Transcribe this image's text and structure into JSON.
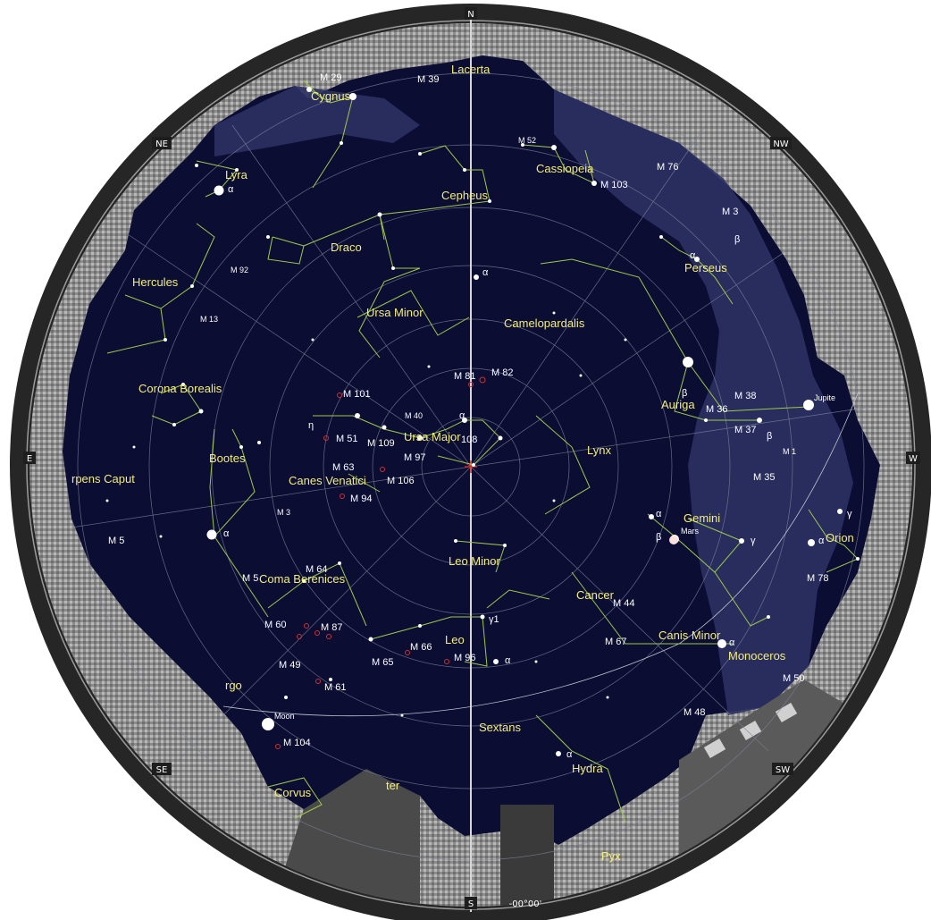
{
  "directions": {
    "n": "N",
    "ne": "NE",
    "e": "E",
    "se": "SE",
    "s": "S",
    "sw": "SW",
    "w": "W",
    "nw": "NW"
  },
  "readout": "-00°00'",
  "constellations": [
    {
      "id": "cygnus",
      "label": "Cygnus"
    },
    {
      "id": "lacerta",
      "label": "Lacerta"
    },
    {
      "id": "cassiopeia",
      "label": "Cassiopeia"
    },
    {
      "id": "cepheus",
      "label": "Cepheus"
    },
    {
      "id": "lyra",
      "label": "Lyra"
    },
    {
      "id": "draco",
      "label": "Draco"
    },
    {
      "id": "hercules",
      "label": "Hercules"
    },
    {
      "id": "ursa-minor",
      "label": "Ursa Minor"
    },
    {
      "id": "camelopardalis",
      "label": "Camelopardalis"
    },
    {
      "id": "perseus",
      "label": "Perseus"
    },
    {
      "id": "corona-borealis",
      "label": "Corona Borealis"
    },
    {
      "id": "auriga",
      "label": "Auriga"
    },
    {
      "id": "bootes",
      "label": "Bootes"
    },
    {
      "id": "ursa-major",
      "label": "Ursa Major"
    },
    {
      "id": "lynx",
      "label": "Lynx"
    },
    {
      "id": "serpens-caput",
      "label": "rpens Caput"
    },
    {
      "id": "canes-venatici",
      "label": "Canes Venatici"
    },
    {
      "id": "gemini",
      "label": "Gemini"
    },
    {
      "id": "orion",
      "label": "Orion"
    },
    {
      "id": "leo-minor",
      "label": "Leo Minor"
    },
    {
      "id": "coma-berenices",
      "label": "Coma Berenices"
    },
    {
      "id": "cancer",
      "label": "Cancer"
    },
    {
      "id": "leo",
      "label": "Leo"
    },
    {
      "id": "canis-minor",
      "label": "Canis Minor"
    },
    {
      "id": "monoceros",
      "label": "Monoceros"
    },
    {
      "id": "virgo",
      "label": "rgo"
    },
    {
      "id": "sextans",
      "label": "Sextans"
    },
    {
      "id": "hydra",
      "label": "Hydra"
    },
    {
      "id": "corvus",
      "label": "Corvus"
    },
    {
      "id": "crater",
      "label": "ter"
    },
    {
      "id": "pyxis",
      "label": "Pyx"
    }
  ],
  "objects": [
    {
      "id": "m29",
      "label": "M 29"
    },
    {
      "id": "m39",
      "label": "M 39"
    },
    {
      "id": "m52",
      "label": "M 52"
    },
    {
      "id": "m76",
      "label": "M 76"
    },
    {
      "id": "m103",
      "label": "M 103"
    },
    {
      "id": "m34",
      "label": "M 3"
    },
    {
      "id": "m92",
      "label": "M 92"
    },
    {
      "id": "m13",
      "label": "M 13"
    },
    {
      "id": "m81",
      "label": "M 81"
    },
    {
      "id": "m82",
      "label": "M 82"
    },
    {
      "id": "m101",
      "label": "M 101"
    },
    {
      "id": "m40",
      "label": "M 40"
    },
    {
      "id": "m38",
      "label": "M 38"
    },
    {
      "id": "m36",
      "label": "M 36"
    },
    {
      "id": "m37",
      "label": "M 37"
    },
    {
      "id": "m51",
      "label": "M 51"
    },
    {
      "id": "m109",
      "label": "M 109"
    },
    {
      "id": "m108",
      "label": "108"
    },
    {
      "id": "m97",
      "label": "M 97"
    },
    {
      "id": "m1",
      "label": "M 1"
    },
    {
      "id": "m63",
      "label": "M 63"
    },
    {
      "id": "m106",
      "label": "M 106"
    },
    {
      "id": "m35",
      "label": "M 35"
    },
    {
      "id": "m94",
      "label": "M 94"
    },
    {
      "id": "m3",
      "label": "M 3"
    },
    {
      "id": "m5",
      "label": "M 5"
    },
    {
      "id": "m64",
      "label": "M 64"
    },
    {
      "id": "m53",
      "label": "M 5"
    },
    {
      "id": "m78",
      "label": "M 78"
    },
    {
      "id": "m44",
      "label": "M 44"
    },
    {
      "id": "m60",
      "label": "M 60"
    },
    {
      "id": "m87",
      "label": "M 87"
    },
    {
      "id": "m67",
      "label": "M 67"
    },
    {
      "id": "m66",
      "label": "M 66"
    },
    {
      "id": "m65",
      "label": "M 65"
    },
    {
      "id": "m96",
      "label": "M 96"
    },
    {
      "id": "m49",
      "label": "M 49"
    },
    {
      "id": "m61",
      "label": "M 61"
    },
    {
      "id": "m50",
      "label": "M 50"
    },
    {
      "id": "m48",
      "label": "M 48"
    },
    {
      "id": "m104",
      "label": "M 104"
    }
  ],
  "planets": [
    {
      "id": "jupiter",
      "label": "Jupite"
    },
    {
      "id": "mars",
      "label": "Mars"
    },
    {
      "id": "moon",
      "label": "Moon"
    }
  ],
  "greek": [
    {
      "id": "alpha-lyr",
      "label": "α"
    },
    {
      "id": "alpha-cep",
      "label": "α"
    },
    {
      "id": "alpha-per",
      "label": "α"
    },
    {
      "id": "beta-per",
      "label": "β"
    },
    {
      "id": "beta-aur",
      "label": "β"
    },
    {
      "id": "beta-tau",
      "label": "β"
    },
    {
      "id": "eta-uma",
      "label": "η"
    },
    {
      "id": "alpha-uma",
      "label": "α"
    },
    {
      "id": "alpha-gem",
      "label": "α"
    },
    {
      "id": "beta-gem",
      "label": "β"
    },
    {
      "id": "gamma-gem",
      "label": "γ"
    },
    {
      "id": "gamma-ori",
      "label": "γ"
    },
    {
      "id": "alpha-ori",
      "label": "α"
    },
    {
      "id": "alpha-boo",
      "label": "α"
    },
    {
      "id": "gamma-leo",
      "label": "γ1"
    },
    {
      "id": "alpha-leo",
      "label": "α"
    },
    {
      "id": "alpha-cmi",
      "label": "α"
    },
    {
      "id": "alpha-hya",
      "label": "α"
    }
  ],
  "colors": {
    "sky": "#0b0d33",
    "ground": "#c9c9c9",
    "rim": "#2a2a2a",
    "constellation_line": "#9fc94a",
    "constellation_label": "#f4ee7a",
    "grid": "#7c8296",
    "meridian": "#d6d6d6",
    "milky_way": "#2b3163"
  }
}
